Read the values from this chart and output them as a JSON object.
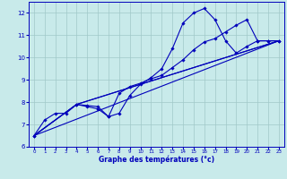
{
  "xlabel": "Graphe des températures (°c)",
  "xlim": [
    -0.5,
    23.5
  ],
  "ylim": [
    6,
    12.5
  ],
  "yticks": [
    6,
    7,
    8,
    9,
    10,
    11,
    12
  ],
  "xticks": [
    0,
    1,
    2,
    3,
    4,
    5,
    6,
    7,
    8,
    9,
    10,
    11,
    12,
    13,
    14,
    15,
    16,
    17,
    18,
    19,
    20,
    21,
    22,
    23
  ],
  "background_color": "#c8eaea",
  "grid_color": "#a0c8c8",
  "line_color": "#0000bb",
  "line_width": 0.8,
  "marker": "D",
  "marker_size": 1.8,
  "curves": [
    {
      "x": [
        0,
        1,
        2,
        3,
        4,
        5,
        6,
        7,
        8,
        9,
        10,
        11,
        12,
        13,
        14,
        15,
        16,
        17,
        18,
        19,
        20,
        21,
        22,
        23
      ],
      "y": [
        6.5,
        7.2,
        7.5,
        7.5,
        7.9,
        7.8,
        7.7,
        7.35,
        7.5,
        8.3,
        8.8,
        9.1,
        9.5,
        10.4,
        11.55,
        12.0,
        12.2,
        11.7,
        10.75,
        10.2,
        10.5,
        10.75,
        10.75,
        10.75
      ]
    },
    {
      "x": [
        0,
        4,
        5,
        6,
        7,
        8,
        9,
        10,
        11,
        12,
        13,
        14,
        15,
        16,
        17,
        18,
        19,
        20,
        21,
        22,
        23
      ],
      "y": [
        6.5,
        7.9,
        7.85,
        7.8,
        7.35,
        8.4,
        8.7,
        8.85,
        9.05,
        9.2,
        9.55,
        9.9,
        10.35,
        10.7,
        10.85,
        11.15,
        11.45,
        11.7,
        10.75,
        10.75,
        10.75
      ]
    },
    {
      "x": [
        0,
        23
      ],
      "y": [
        6.5,
        10.75
      ]
    },
    {
      "x": [
        0,
        4,
        23
      ],
      "y": [
        6.5,
        7.9,
        10.75
      ]
    },
    {
      "x": [
        0,
        4,
        23
      ],
      "y": [
        6.5,
        7.9,
        10.75
      ]
    }
  ]
}
